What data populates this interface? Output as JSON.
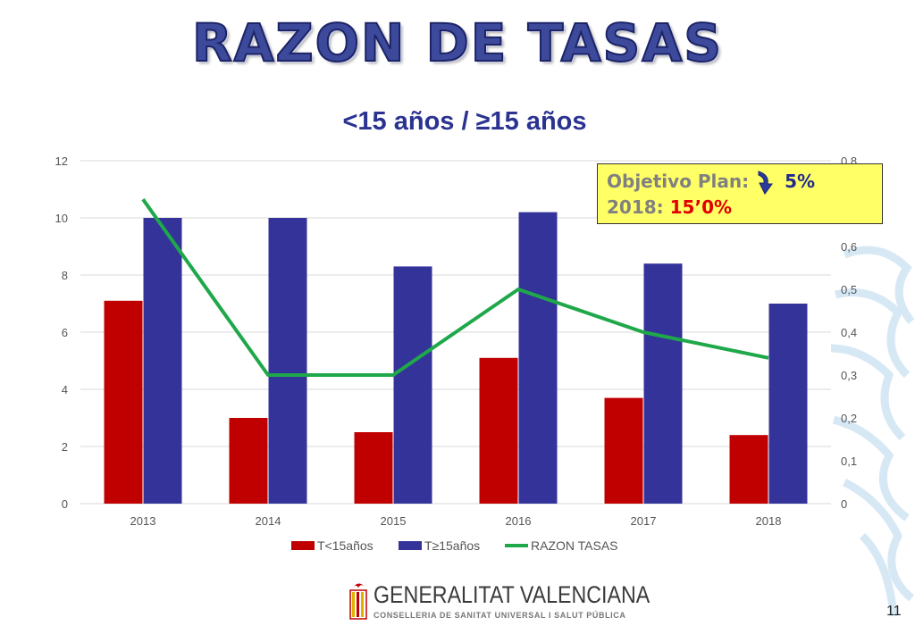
{
  "slide": {
    "title": "RAZON DE TASAS",
    "page_number": "11"
  },
  "goal_box": {
    "line1_label": "Objetivo Plan:",
    "line1_value": "5%",
    "line2_label": "2018:",
    "line2_value": "15’0%"
  },
  "logo": {
    "name": "GENERALITAT VALENCIANA",
    "subtitle": "CONSELLERIA DE SANITAT UNIVERSAL I SALUT PÚBLICA"
  },
  "colors": {
    "series1": "#c00000",
    "series2": "#333399",
    "line": "#1fa84a",
    "grid": "#d9d9d9",
    "goal_box_bg": "#ffff66"
  },
  "icons": [
    "curved-down-arrow-icon",
    "generalitat-emblem-icon",
    "watermark-emblem"
  ],
  "chart_data": {
    "type": "bar",
    "title": "<15 años / ≥15 años",
    "categories": [
      "2013",
      "2014",
      "2015",
      "2016",
      "2017",
      "2018"
    ],
    "series": [
      {
        "name": "T<15años",
        "type": "bar",
        "axis": "left",
        "values": [
          7.1,
          3.0,
          2.5,
          5.1,
          3.7,
          2.4
        ]
      },
      {
        "name": "T≥15años",
        "type": "bar",
        "axis": "left",
        "values": [
          10.0,
          10.0,
          8.3,
          10.2,
          8.4,
          7.0
        ]
      },
      {
        "name": "RAZON TASAS",
        "type": "line",
        "axis": "right",
        "values": [
          0.71,
          0.3,
          0.3,
          0.5,
          0.4,
          0.34
        ]
      }
    ],
    "y_left": {
      "ylim": [
        0,
        12
      ],
      "ticks": [
        "0",
        "2",
        "4",
        "6",
        "8",
        "10",
        "12"
      ]
    },
    "y_right": {
      "ylim": [
        0,
        0.8
      ],
      "ticks": [
        "0",
        "0,1",
        "0,2",
        "0,3",
        "0,4",
        "0,5",
        "0,6",
        "0,7",
        "0,8"
      ]
    },
    "grid": true,
    "legend": "bottom"
  }
}
